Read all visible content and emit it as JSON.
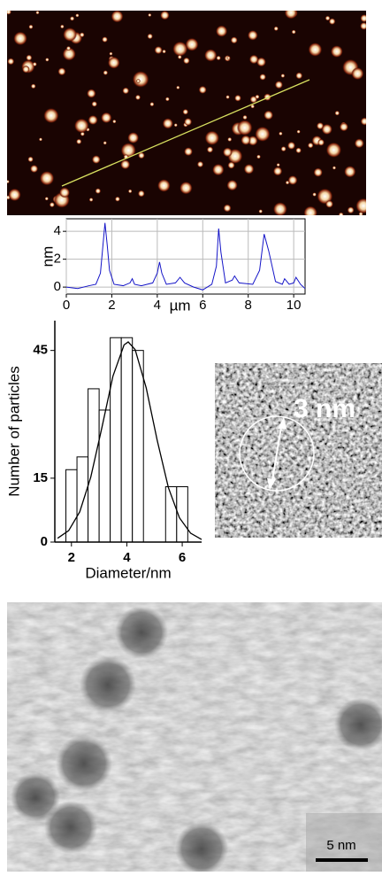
{
  "chart_data": [
    {
      "type": "line",
      "ylabel": "nm",
      "xlabel": "µm",
      "x": [
        0,
        0.5,
        1.0,
        1.3,
        1.5,
        1.6,
        1.7,
        1.8,
        1.9,
        2.1,
        2.5,
        2.8,
        2.9,
        3.0,
        3.3,
        3.8,
        4.0,
        4.1,
        4.2,
        4.4,
        4.8,
        5.0,
        5.2,
        5.6,
        6.0,
        6.4,
        6.6,
        6.7,
        6.8,
        7.0,
        7.3,
        7.4,
        7.6,
        8.2,
        8.5,
        8.7,
        8.9,
        9.2,
        9.5,
        9.6,
        9.8,
        10.0,
        10.1,
        10.3,
        10.5
      ],
      "series": [
        {
          "color": "#1515c8",
          "values": [
            0,
            -0.1,
            0.1,
            0.2,
            1.0,
            2.8,
            4.6,
            3.0,
            1.2,
            0.2,
            0.1,
            0.3,
            0.6,
            0.2,
            0.1,
            0.3,
            1.0,
            1.8,
            1.0,
            0.2,
            0.3,
            0.7,
            0.3,
            0.0,
            -0.2,
            0.2,
            1.5,
            4.2,
            2.5,
            0.3,
            0.5,
            0.8,
            0.3,
            0.2,
            1.2,
            3.8,
            2.6,
            0.4,
            0.2,
            0.6,
            0.2,
            0.3,
            0.7,
            0.2,
            -0.1
          ]
        }
      ],
      "xlim": [
        0,
        10.5
      ],
      "ylim": [
        -0.5,
        4.9
      ],
      "xticks": [
        0,
        2,
        4,
        6,
        8,
        10
      ],
      "yticks": [
        0,
        2,
        4
      ],
      "grid": true
    },
    {
      "type": "histogram",
      "xlabel": "Diameter/nm",
      "ylabel": "Number of particles",
      "bins": [
        1.8,
        2.2,
        2.6,
        3.0,
        3.4,
        3.8,
        4.2,
        4.6,
        5.0,
        5.4,
        5.8,
        6.2
      ],
      "values": [
        17,
        20,
        36,
        31,
        48,
        48,
        45,
        0,
        0,
        13,
        13
      ],
      "color": "#ffffff",
      "fit": {
        "x": [
          1.5,
          1.9,
          2.3,
          2.7,
          3.1,
          3.5,
          3.9,
          4.05,
          4.3,
          4.7,
          5.1,
          5.5,
          5.9,
          6.3,
          6.7
        ],
        "values": [
          0.9,
          2.7,
          7.1,
          15.3,
          26.9,
          39.0,
          46.3,
          47,
          45.2,
          36.2,
          23.8,
          12.8,
          5.7,
          2.1,
          0.6
        ]
      },
      "xlim": [
        1.4,
        6.7
      ],
      "ylim": [
        0,
        52
      ],
      "xticks": [
        2,
        4,
        6
      ],
      "yticks": [
        0,
        15,
        45
      ],
      "grid": false
    }
  ],
  "images": {
    "hrtem_label": "3 nm",
    "tem_scale_bar": "5 nm"
  }
}
